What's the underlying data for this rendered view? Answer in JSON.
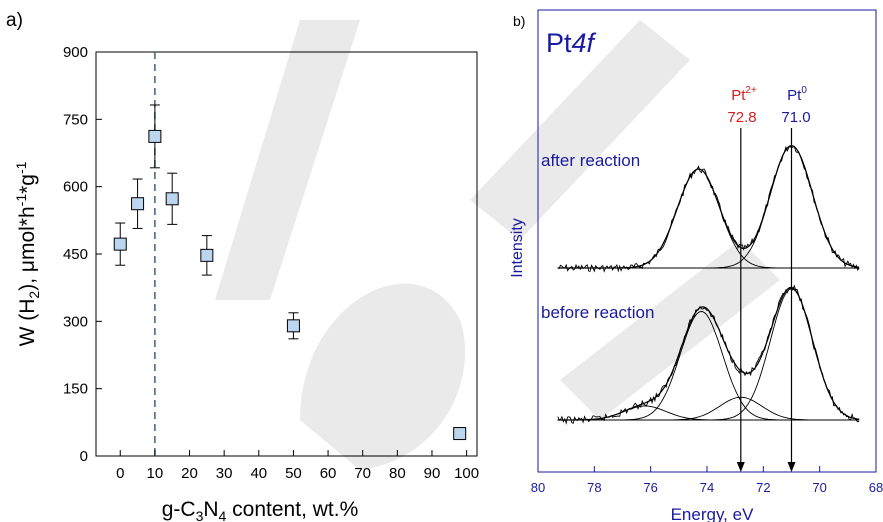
{
  "chart_data": [
    {
      "type": "scatter",
      "panel_label": "a)",
      "xlabel": "g-C3N4 content, wt.%",
      "ylabel": "W (H2), μmol*h-1*g-1",
      "xlim": [
        -7,
        103
      ],
      "ylim": [
        0,
        900
      ],
      "x_ticks": [
        0,
        10,
        20,
        30,
        40,
        50,
        60,
        70,
        80,
        90,
        100
      ],
      "y_ticks": [
        0,
        150,
        300,
        450,
        600,
        750,
        900
      ],
      "vline_x": 10,
      "points": [
        {
          "x": 0,
          "y": 472,
          "err": 47
        },
        {
          "x": 5,
          "y": 562,
          "err": 55
        },
        {
          "x": 10,
          "y": 712,
          "err": 70
        },
        {
          "x": 15,
          "y": 573,
          "err": 57
        },
        {
          "x": 25,
          "y": 447,
          "err": 44
        },
        {
          "x": 50,
          "y": 290,
          "err": 29
        },
        {
          "x": 98,
          "y": 50,
          "err": 10
        }
      ],
      "marker_color": "#bcd6f0"
    },
    {
      "type": "line",
      "panel_label": "b)",
      "title": "Pt4f",
      "xlabel": "Energy, eV",
      "ylabel": "Intensity",
      "xlim": [
        80,
        68
      ],
      "x_ticks": [
        80,
        78,
        76,
        74,
        72,
        70,
        68
      ],
      "series": [
        {
          "name": "after reaction",
          "peaks": [
            {
              "center": 74.3,
              "height": 0.55
            },
            {
              "center": 71.0,
              "height": 0.68
            }
          ]
        },
        {
          "name": "before reaction",
          "peaks": [
            {
              "center": 76.2,
              "height": 0.08
            },
            {
              "center": 74.2,
              "height": 0.62
            },
            {
              "center": 72.8,
              "height": 0.13
            },
            {
              "center": 71.0,
              "height": 0.75
            }
          ]
        }
      ],
      "markers": [
        {
          "label": "Pt2+",
          "value": "72.8",
          "x": 72.8,
          "color": "#d42020"
        },
        {
          "label": "Pt0",
          "value": "71.0",
          "x": 71.0,
          "color": "#1a1aa0"
        }
      ],
      "axis_color": "#1a1aa0"
    }
  ],
  "text": {
    "a_label": "a)",
    "b_label": "b)",
    "title_pt": "Pt",
    "title_4f": "4f",
    "pt2_base": "Pt",
    "pt2_sup": "2+",
    "pt2_val": "72.8",
    "pt0_base": "Pt",
    "pt0_sup": "0",
    "pt0_val": "71.0",
    "after": "after reaction",
    "before": "before reaction",
    "intensity": "Intensity",
    "energy": "Energy, eV",
    "xlab_a1": "g-C",
    "xlab_a2": "3",
    "xlab_a3": "N",
    "xlab_a4": "4",
    "xlab_a5": " content, wt.%",
    "ylab_1": "W (H",
    "ylab_2": "2",
    "ylab_3": "), μmol*h",
    "ylab_4": "-1",
    "ylab_5": "*g",
    "ylab_6": "-1"
  }
}
